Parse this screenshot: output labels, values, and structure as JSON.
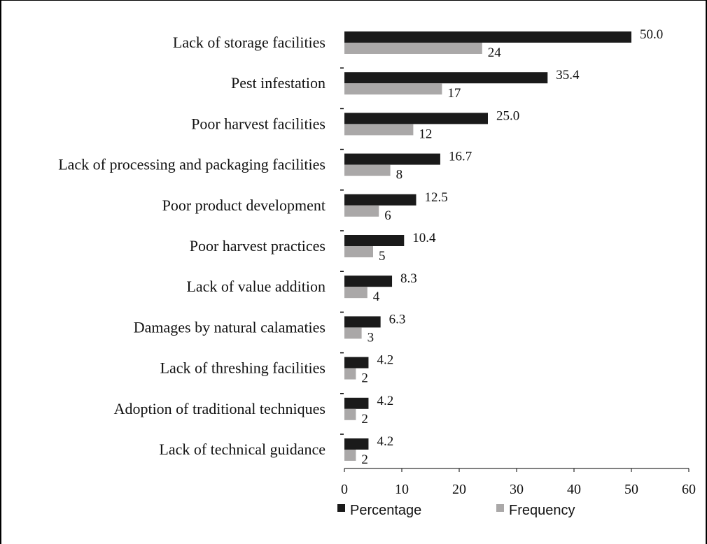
{
  "chart_data": {
    "type": "bar",
    "orientation": "horizontal",
    "categories": [
      "Lack of storage facilities",
      "Pest infestation",
      "Poor harvest facilities",
      "Lack of processing and packaging facilities",
      "Poor product development",
      "Poor harvest practices",
      "Lack of value addition",
      "Damages by natural calamaties",
      "Lack of threshing facilities",
      "Adoption of traditional techniques",
      "Lack of technical guidance"
    ],
    "series": [
      {
        "name": "Percentage",
        "color": "#1a1a1a",
        "values": [
          50.0,
          35.4,
          25.0,
          16.7,
          12.5,
          10.4,
          8.3,
          6.3,
          4.2,
          4.2,
          4.2
        ],
        "labels": [
          "50.0",
          "35.4",
          "25.0",
          "16.7",
          "12.5",
          "10.4",
          "8.3",
          "6.3",
          "4.2",
          "4.2",
          "4.2"
        ]
      },
      {
        "name": "Frequency",
        "color": "#aaa8a8",
        "values": [
          24,
          17,
          12,
          8,
          6,
          5,
          4,
          3,
          2,
          2,
          2
        ],
        "labels": [
          "24",
          "17",
          "12",
          "8",
          "6",
          "5",
          "4",
          "3",
          "2",
          "2",
          "2"
        ]
      }
    ],
    "xlim": [
      0,
      60
    ],
    "xticks": [
      0,
      10,
      20,
      30,
      40,
      50,
      60
    ],
    "title": "",
    "xlabel": "",
    "ylabel": "",
    "grid": false,
    "legend_position": "bottom-left"
  }
}
